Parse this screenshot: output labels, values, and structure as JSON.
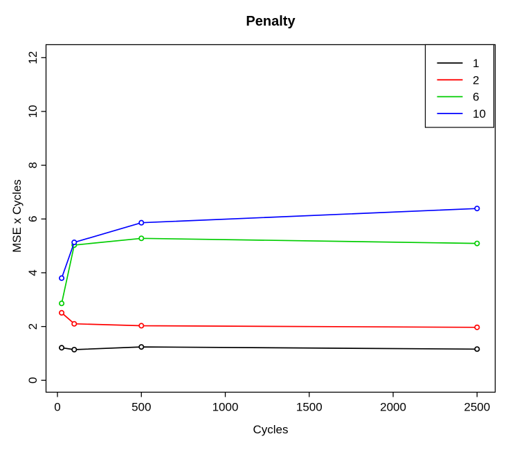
{
  "figure": {
    "background": "#FFFFFF",
    "frame_color": "#000000"
  },
  "chart_data": {
    "type": "line",
    "title": "Penalty",
    "xlabel": "Cycles",
    "ylabel": "MSE x Cycles",
    "x": [
      25,
      100,
      500,
      2500
    ],
    "series": [
      {
        "name": "1",
        "color": "#000000",
        "values": [
          1.21,
          1.14,
          1.24,
          1.16
        ]
      },
      {
        "name": "2",
        "color": "#FF0000",
        "values": [
          2.51,
          2.1,
          2.03,
          1.97
        ]
      },
      {
        "name": "6",
        "color": "#00CD00",
        "values": [
          2.86,
          5.03,
          5.28,
          5.09
        ]
      },
      {
        "name": "10",
        "color": "#0000FF",
        "values": [
          3.8,
          5.13,
          5.86,
          6.39
        ]
      }
    ],
    "x_ticks": [
      0,
      500,
      1000,
      1500,
      2000,
      2500
    ],
    "y_ticks": [
      0,
      2,
      4,
      6,
      8,
      10,
      12
    ],
    "xlim": [
      0,
      2500
    ],
    "ylim": [
      0,
      12
    ],
    "grid": false,
    "marker": "open-circle",
    "legend": {
      "position": "topright",
      "entries": [
        "1",
        "2",
        "6",
        "10"
      ]
    }
  }
}
